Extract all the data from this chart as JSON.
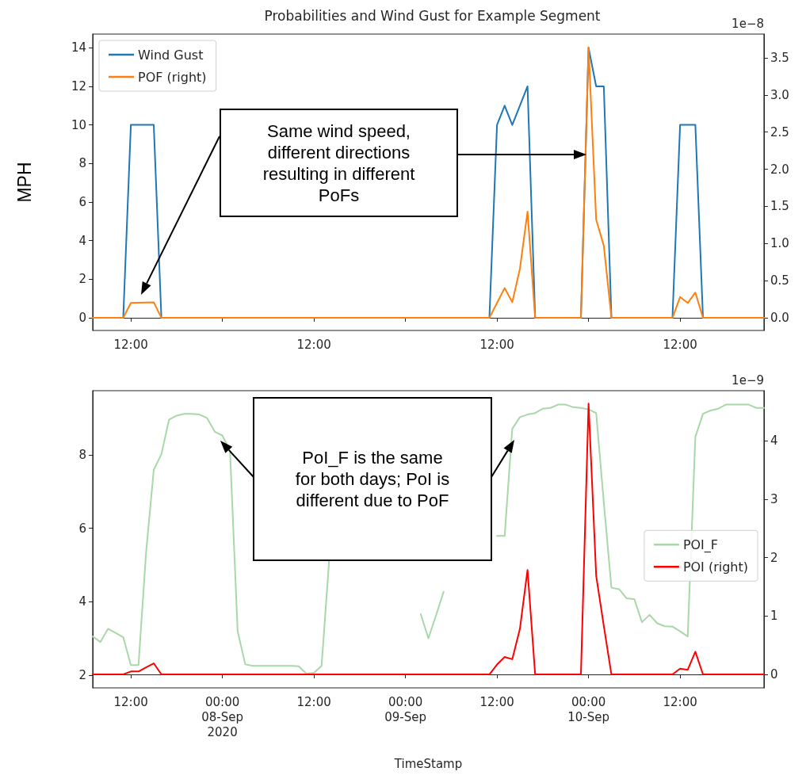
{
  "chart_data": [
    {
      "type": "line",
      "title": "Probabilities and Wind Gust for Example Segment",
      "ylabel": "MPH",
      "y2label": "1e−8",
      "annotations": [
        "Same wind speed,\ndifferent directions\nresulting in different\nPoFs"
      ],
      "series": [
        {
          "name": "Wind Gust",
          "color": "#1f77b4",
          "x": [
            "2020-09-07T07:00",
            "2020-09-07T11:00",
            "2020-09-07T12:00",
            "2020-09-07T15:00",
            "2020-09-07T16:00",
            "2020-09-09T11:00",
            "2020-09-09T12:00",
            "2020-09-09T13:00",
            "2020-09-09T14:00",
            "2020-09-09T15:00",
            "2020-09-09T16:00",
            "2020-09-09T17:00",
            "2020-09-09T23:00",
            "2020-09-10T00:00",
            "2020-09-10T01:00",
            "2020-09-10T02:00",
            "2020-09-10T03:00",
            "2020-09-10T11:00",
            "2020-09-10T12:00",
            "2020-09-10T14:00",
            "2020-09-10T15:00",
            "2020-09-10T23:00"
          ],
          "values": [
            0,
            0,
            10,
            10,
            0,
            0,
            10,
            11,
            10,
            11,
            12,
            0,
            0,
            14,
            12,
            12,
            0,
            0,
            10,
            10,
            0,
            0
          ]
        },
        {
          "name": "POF (right)",
          "color": "#ff7f0e",
          "axis": "y2",
          "x": [
            "2020-09-07T07:00",
            "2020-09-07T11:00",
            "2020-09-07T12:00",
            "2020-09-07T15:00",
            "2020-09-07T16:00",
            "2020-09-09T11:00",
            "2020-09-09T12:00",
            "2020-09-09T13:00",
            "2020-09-09T14:00",
            "2020-09-09T15:00",
            "2020-09-09T16:00",
            "2020-09-09T17:00",
            "2020-09-09T23:00",
            "2020-09-10T00:00",
            "2020-09-10T01:00",
            "2020-09-10T02:00",
            "2020-09-10T03:00",
            "2020-09-10T11:00",
            "2020-09-10T12:00",
            "2020-09-10T13:00",
            "2020-09-10T14:00",
            "2020-09-10T15:00",
            "2020-09-10T23:00"
          ],
          "values": [
            0,
            0,
            0.2,
            0.21,
            0,
            0,
            0.2,
            0.4,
            0.21,
            0.66,
            1.43,
            0,
            0,
            3.64,
            1.32,
            0.97,
            0,
            0,
            0.28,
            0.2,
            0.34,
            0,
            0
          ]
        }
      ],
      "xlim": [
        "2020-09-07T07:00",
        "2020-09-10T23:00"
      ],
      "xticks": [
        {
          "value": "2020-09-07T12:00",
          "label": "12:00"
        },
        {
          "value": "2020-09-08T00:00",
          "label": null
        },
        {
          "value": "2020-09-08T12:00",
          "label": "12:00"
        },
        {
          "value": "2020-09-09T00:00",
          "label": null
        },
        {
          "value": "2020-09-09T12:00",
          "label": "12:00"
        },
        {
          "value": "2020-09-10T00:00",
          "label": null
        },
        {
          "value": "2020-09-10T12:00",
          "label": "12:00"
        }
      ],
      "ylim": [
        -0.66,
        14.71
      ],
      "yticks": [
        0,
        2,
        4,
        6,
        8,
        10,
        12,
        14
      ],
      "y2lim": [
        -0.17,
        3.82
      ],
      "y2ticks": [
        {
          "value": 0,
          "label": "0.0"
        },
        0.5,
        {
          "value": 1,
          "label": "1.0"
        },
        1.5,
        {
          "value": 2,
          "label": "2.0"
        },
        2.5,
        {
          "value": 3,
          "label": "3.0"
        },
        3.5
      ],
      "legend": "top left"
    },
    {
      "type": "line",
      "xlabel": "TimeStamp",
      "y2label": "1e−9",
      "annotations": [
        "PoI_F is the same\nfor both days; PoI is\ndifferent due to PoF"
      ],
      "series": [
        {
          "name": "POI_F",
          "color": "#a8d8a8",
          "x": [
            "2020-09-07T07:00",
            "2020-09-07T08:00",
            "2020-09-07T09:00",
            "2020-09-07T10:00",
            "2020-09-07T11:00",
            "2020-09-07T12:00",
            "2020-09-07T13:00",
            "2020-09-07T14:00",
            "2020-09-07T15:00",
            "2020-09-07T16:00",
            "2020-09-07T17:00",
            "2020-09-07T18:00",
            "2020-09-07T19:00",
            "2020-09-07T20:00",
            "2020-09-07T21:00",
            "2020-09-07T22:00",
            "2020-09-07T23:00",
            "2020-09-08T00:00",
            "2020-09-08T01:00",
            "2020-09-08T02:00",
            "2020-09-08T03:00",
            "2020-09-08T04:00",
            "2020-09-08T05:00",
            "2020-09-08T06:00",
            "2020-09-08T07:00",
            "2020-09-08T08:00",
            "2020-09-08T09:00",
            "2020-09-08T10:00",
            "2020-09-08T11:00",
            "2020-09-08T12:00",
            "2020-09-08T13:00",
            "2020-09-08T14:00",
            "2020-09-08T15:00",
            "2020-09-08T16:00",
            "2020-09-08T17:00",
            "2020-09-08T18:00",
            "2020-09-08T19:00",
            "2020-09-08T20:00",
            "2020-09-08T21:00",
            "2020-09-08T22:00",
            "2020-09-08T23:00",
            "2020-09-09T00:00",
            "2020-09-09T01:00",
            "2020-09-09T02:00",
            "2020-09-09T03:00",
            "2020-09-09T04:00",
            "2020-09-09T05:00",
            "2020-09-09T06:00",
            "2020-09-09T07:00",
            "2020-09-09T08:00",
            "2020-09-09T09:00",
            "2020-09-09T10:00",
            "2020-09-09T11:00",
            "2020-09-09T12:00",
            "2020-09-09T13:00",
            "2020-09-09T14:00",
            "2020-09-09T15:00",
            "2020-09-09T16:00",
            "2020-09-09T17:00",
            "2020-09-09T18:00",
            "2020-09-09T19:00",
            "2020-09-09T20:00",
            "2020-09-09T21:00",
            "2020-09-09T22:00",
            "2020-09-09T23:00",
            "2020-09-10T00:00",
            "2020-09-10T01:00",
            "2020-09-10T02:00",
            "2020-09-10T03:00",
            "2020-09-10T04:00",
            "2020-09-10T05:00",
            "2020-09-10T06:00",
            "2020-09-10T07:00",
            "2020-09-10T08:00",
            "2020-09-10T09:00",
            "2020-09-10T10:00",
            "2020-09-10T11:00",
            "2020-09-10T12:00",
            "2020-09-10T13:00",
            "2020-09-10T14:00",
            "2020-09-10T15:00",
            "2020-09-10T16:00",
            "2020-09-10T17:00",
            "2020-09-10T18:00",
            "2020-09-10T19:00",
            "2020-09-10T20:00",
            "2020-09-10T21:00",
            "2020-09-10T22:00",
            "2020-09-10T23:00"
          ],
          "values": [
            3.05,
            2.9,
            3.26,
            3.15,
            3.03,
            2.27,
            2.27,
            5.35,
            7.59,
            8.02,
            8.96,
            9.07,
            9.12,
            9.12,
            9.1,
            9.0,
            8.63,
            8.53,
            8.1,
            3.19,
            2.29,
            2.25,
            2.25,
            2.25,
            2.25,
            2.25,
            2.25,
            2.24,
            2.04,
            2.06,
            2.25,
            5.14,
            null,
            null,
            null,
            null,
            null,
            null,
            null,
            null,
            null,
            null,
            null,
            3.66,
            3.0,
            3.62,
            4.27,
            null,
            null,
            null,
            null,
            null,
            null,
            5.79,
            5.79,
            8.71,
            9.03,
            9.1,
            9.14,
            9.26,
            9.28,
            9.37,
            9.37,
            9.3,
            9.28,
            9.24,
            9.14,
            6.7,
            4.38,
            4.34,
            4.09,
            4.07,
            3.44,
            3.64,
            3.41,
            3.33,
            3.32,
            3.19,
            3.05,
            8.49,
            9.12,
            9.21,
            9.26,
            9.37,
            9.37,
            9.37,
            9.37,
            9.28,
            9.28
          ]
        },
        {
          "name": "POI (right)",
          "color": "#ff0000",
          "axis": "y2",
          "x": [
            "2020-09-07T07:00",
            "2020-09-07T11:00",
            "2020-09-07T12:00",
            "2020-09-07T13:00",
            "2020-09-07T14:00",
            "2020-09-07T15:00",
            "2020-09-07T16:00",
            "2020-09-09T11:00",
            "2020-09-09T12:00",
            "2020-09-09T13:00",
            "2020-09-09T14:00",
            "2020-09-09T15:00",
            "2020-09-09T16:00",
            "2020-09-09T17:00",
            "2020-09-09T23:00",
            "2020-09-10T00:00",
            "2020-09-10T01:00",
            "2020-09-10T02:00",
            "2020-09-10T03:00",
            "2020-09-10T11:00",
            "2020-09-10T12:00",
            "2020-09-10T13:00",
            "2020-09-10T14:00",
            "2020-09-10T15:00",
            "2020-09-10T23:00"
          ],
          "values": [
            0,
            0,
            0.05,
            0.05,
            0.12,
            0.19,
            0,
            0,
            0.17,
            0.3,
            0.26,
            0.78,
            1.79,
            0,
            0,
            4.64,
            1.69,
            0.83,
            0,
            0,
            0.1,
            0.08,
            0.39,
            0,
            0
          ]
        }
      ],
      "xlim": [
        "2020-09-07T07:00",
        "2020-09-10T23:00"
      ],
      "xticks": [
        {
          "value": "2020-09-07T12:00",
          "label": "12:00"
        },
        {
          "value": "2020-09-08T00:00",
          "label": "00:00\n08-Sep\n2020"
        },
        {
          "value": "2020-09-08T12:00",
          "label": "12:00"
        },
        {
          "value": "2020-09-09T00:00",
          "label": "00:00\n09-Sep"
        },
        {
          "value": "2020-09-09T12:00",
          "label": "12:00"
        },
        {
          "value": "2020-09-10T00:00",
          "label": "00:00\n10-Sep"
        },
        {
          "value": "2020-09-10T12:00",
          "label": "12:00"
        }
      ],
      "ylim": [
        1.65,
        9.75
      ],
      "yticks": [
        2,
        4,
        6,
        8
      ],
      "y2lim": [
        -0.23,
        4.86
      ],
      "y2ticks": [
        0,
        1,
        2,
        3,
        4
      ],
      "legend": "right"
    }
  ]
}
